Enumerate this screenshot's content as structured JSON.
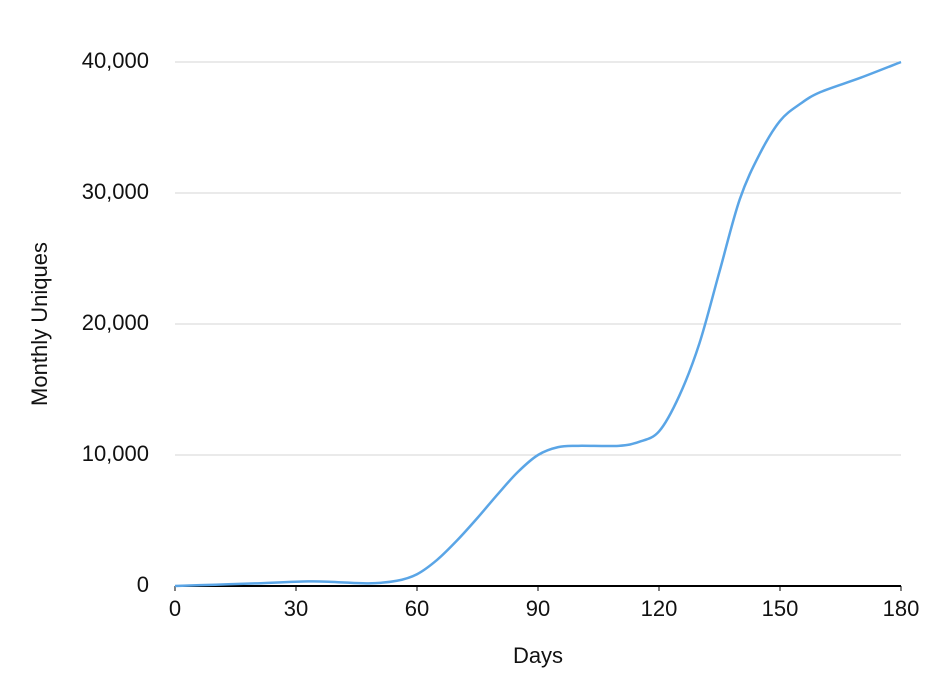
{
  "chart_data": {
    "type": "line",
    "x_label": "Days",
    "y_label": "Monthly Uniques",
    "x": [
      0,
      10,
      20,
      33,
      40,
      48,
      55,
      60,
      65,
      70,
      75,
      80,
      85,
      90,
      95,
      100,
      110,
      115,
      120,
      125,
      130,
      135,
      140,
      145,
      150,
      155,
      160,
      170,
      180
    ],
    "series": [
      {
        "name": "Monthly Uniques",
        "color": "#5aa5e6",
        "values": [
          0,
          100,
          200,
          350,
          300,
          200,
          400,
          900,
          2000,
          3500,
          5200,
          7000,
          8700,
          10000,
          10600,
          10700,
          10700,
          11000,
          11800,
          14500,
          18500,
          24000,
          29500,
          33000,
          35500,
          36800,
          37700,
          38800,
          40000
        ]
      }
    ],
    "xlim": [
      0,
      180
    ],
    "xticks": [
      0,
      30,
      60,
      90,
      120,
      150,
      180
    ],
    "ylim": [
      0,
      40000
    ],
    "yticks": [
      0,
      {
        "value": 10000,
        "label": "10,000"
      },
      {
        "value": 20000,
        "label": "20,000"
      },
      {
        "value": 30000,
        "label": "30,000"
      },
      {
        "value": 40000,
        "label": "40,000"
      }
    ],
    "grid": true
  }
}
